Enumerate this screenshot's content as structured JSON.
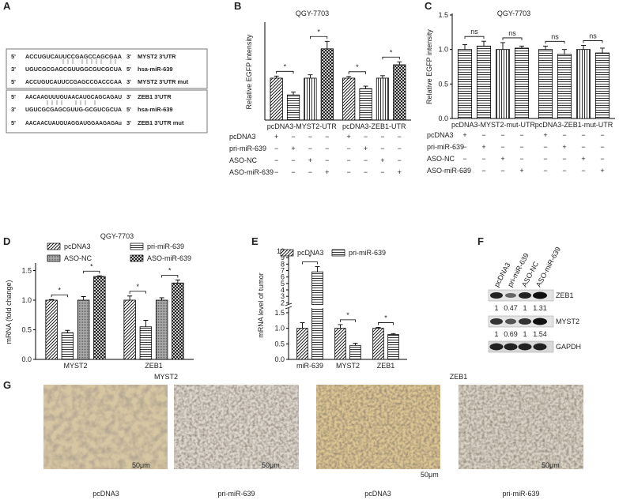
{
  "panel_a": {
    "label": "A",
    "box1": [
      [
        "5'",
        "ACCUGUCAUUCCGAGCCAGCGAA",
        "3'",
        "MYST2 3'UTR"
      ],
      [
        "3'",
        "UGUCGCGAGCGUUGGCGUCGCUA",
        "5'",
        "hsa-miR-639"
      ],
      [
        "5'",
        "ACCUGUCAUUCCGAGCCGACCCAA",
        "3'",
        "MYST2 3'UTR mut"
      ]
    ],
    "box2": [
      [
        "5'",
        "AACAAGUUUGUAACAUGCAGCAGAU",
        "3'",
        "ZEB1 3'UTR"
      ],
      [
        "3'",
        "UGUCGCGAGCGUUG-GCGUCGCUA",
        "5'",
        "hsa-miR-639"
      ],
      [
        "5'",
        "AACAACUAUGUAGGAUGGAAGAGAu",
        "3'",
        "ZEB1 3'UTR mut"
      ]
    ]
  },
  "chart_data": [
    {
      "type": "bar",
      "panel": "B",
      "title": "QGY-7703",
      "y_label": "Relative EGFP intensity",
      "categories": [
        "pcDNA3-MYST2-UTR",
        "pcDNA3-ZEB1-UTR"
      ],
      "ylim": [
        0,
        2.3
      ],
      "series": [
        {
          "name": "pcDNA3",
          "pattern": "diagonal",
          "values": [
            1.0,
            1.0
          ],
          "errors": [
            0.05,
            0.04
          ]
        },
        {
          "name": "pri-miR-639",
          "pattern": "horizontal",
          "values": [
            0.6,
            0.75
          ],
          "errors": [
            0.07,
            0.06
          ]
        },
        {
          "name": "ASO-NC",
          "pattern": "vertical",
          "values": [
            1.0,
            1.0
          ],
          "errors": [
            0.08,
            0.06
          ]
        },
        {
          "name": "ASO-miR-639",
          "pattern": "cross",
          "values": [
            1.7,
            1.32
          ],
          "errors": [
            0.18,
            0.07
          ]
        }
      ],
      "significance": [
        [
          "*",
          "*"
        ],
        [
          "*",
          "*"
        ]
      ],
      "signs": [
        [
          "+",
          "−",
          "−",
          "−",
          "+",
          "−",
          "−",
          "−"
        ],
        [
          "−",
          "+",
          "−",
          "−",
          "−",
          "+",
          "−",
          "−"
        ],
        [
          "−",
          "−",
          "+",
          "−",
          "−",
          "−",
          "+",
          "−"
        ],
        [
          "−",
          "−",
          "−",
          "+",
          "−",
          "−",
          "−",
          "+"
        ]
      ]
    },
    {
      "type": "bar",
      "panel": "C",
      "title": "QGY-7703",
      "y_label": "Relative EGFP intensity",
      "categories": [
        "pcDNA3-MYST2-mut-UTR",
        "pcDNA3-ZEB1-mut-UTR"
      ],
      "ylim": [
        0,
        1.5
      ],
      "yticks": [
        {
          "value": 0,
          "label": "0.0"
        },
        {
          "value": 0.5,
          "label": "0.5"
        },
        {
          "value": 1,
          "label": "1.0"
        },
        {
          "value": 1.5,
          "label": "1.5"
        }
      ],
      "series": [
        {
          "name": "pcDNA3",
          "pattern": "horizontal",
          "values": [
            1.0,
            1.0
          ],
          "errors": [
            0.07,
            0.05
          ]
        },
        {
          "name": "pri-miR-639",
          "pattern": "horizontal",
          "values": [
            1.05,
            0.93
          ],
          "errors": [
            0.07,
            0.07
          ]
        },
        {
          "name": "ASO-NC",
          "pattern": "vertical",
          "values": [
            1.0,
            1.0
          ],
          "errors": [
            0.1,
            0.06
          ]
        },
        {
          "name": "ASO-miR-639",
          "pattern": "horizontal",
          "values": [
            1.02,
            0.95
          ],
          "errors": [
            0.03,
            0.07
          ]
        }
      ],
      "significance": [
        [
          "ns",
          "ns"
        ],
        [
          "ns",
          "ns"
        ]
      ],
      "signs": [
        [
          "+",
          "−",
          "−",
          "−",
          "+",
          "−",
          "−",
          "−"
        ],
        [
          "−",
          "+",
          "−",
          "−",
          "−",
          "+",
          "−",
          "−"
        ],
        [
          "−",
          "−",
          "+",
          "−",
          "−",
          "−",
          "+",
          "−"
        ],
        [
          "−",
          "−",
          "−",
          "+",
          "−",
          "−",
          "−",
          "+"
        ]
      ]
    },
    {
      "type": "bar",
      "panel": "D",
      "title": "QGY-7703",
      "y_label": "mRNA (fold change)",
      "categories": [
        "MYST2",
        "ZEB1"
      ],
      "ylim": [
        0,
        1.6
      ],
      "yticks": [
        {
          "value": 0,
          "label": "0.0"
        },
        {
          "value": 0.5,
          "label": "0.5"
        },
        {
          "value": 1,
          "label": "1.0"
        },
        {
          "value": 1.5,
          "label": "1.5"
        }
      ],
      "series": [
        {
          "name": "pcDNA3",
          "pattern": "diagonal",
          "values": [
            1.0,
            1.0
          ],
          "errors": [
            0.01,
            0.07
          ]
        },
        {
          "name": "pri-miR-639",
          "pattern": "horizontal",
          "values": [
            0.45,
            0.55
          ],
          "errors": [
            0.04,
            0.11
          ]
        },
        {
          "name": "ASO-NC",
          "pattern": "gray",
          "values": [
            1.0,
            1.0
          ],
          "errors": [
            0.06,
            0.04
          ]
        },
        {
          "name": "ASO-miR-639",
          "pattern": "cross",
          "values": [
            1.4,
            1.29
          ],
          "errors": [
            0.01,
            0.05
          ]
        }
      ],
      "significance": [
        [
          "*",
          "*"
        ],
        [
          "*",
          "*"
        ]
      ]
    },
    {
      "type": "bar",
      "panel": "E",
      "y_label": "mRNA level of tumor",
      "categories": [
        "miR-639",
        "MYST2",
        "ZEB1"
      ],
      "ylim": [
        0,
        10
      ],
      "yticks": [
        {
          "value": 0,
          "label": "0.0"
        },
        {
          "value": 0.5,
          "label": "0.5"
        },
        {
          "value": 1,
          "label": "1.0"
        },
        {
          "value": 1.5,
          "label": "1.5"
        },
        2,
        3,
        4,
        5,
        6,
        7,
        8,
        9,
        10
      ],
      "series": [
        {
          "name": "pcDNA3",
          "pattern": "diagonal",
          "values": [
            1.0,
            1.0,
            1.0
          ],
          "errors": [
            0.18,
            0.12,
            0.03
          ]
        },
        {
          "name": "pri-miR-639",
          "pattern": "horizontal",
          "values": [
            6.8,
            0.45,
            0.8
          ],
          "errors": [
            0.8,
            0.07,
            0.03
          ]
        }
      ],
      "significance": [
        [
          "*"
        ],
        [
          "*"
        ],
        [
          "*"
        ]
      ]
    }
  ],
  "panel_f": {
    "label": "F",
    "lanes": [
      "pcDNA3",
      "pri-miR-639",
      "ASO-NC",
      "ASO-miR-639"
    ],
    "rows": [
      {
        "name": "ZEB1",
        "values": [
          1,
          0.47,
          1,
          1.31
        ]
      },
      {
        "name": "MYST2",
        "values": [
          1,
          0.69,
          1,
          1.54
        ]
      },
      {
        "name": "GAPDH"
      }
    ]
  },
  "panel_g": {
    "label": "G",
    "titles": [
      "MYST2",
      "ZEB1"
    ],
    "captions": [
      "pcDNA3",
      "pri-miR-639",
      "pcDNA3",
      "pri-miR-639"
    ],
    "scale_bar": "50μm"
  }
}
